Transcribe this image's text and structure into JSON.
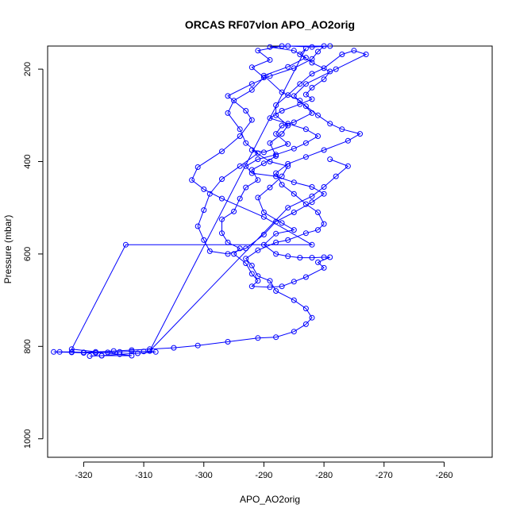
{
  "chart_data": {
    "type": "scatter",
    "title": "ORCAS RF07vlon APO_AO2orig",
    "xlabel": "APO_AO2orig",
    "ylabel": "Pressure (mbar)",
    "xlim": [
      -326,
      -252
    ],
    "ylim": [
      1040,
      150
    ],
    "y_reversed": true,
    "x_ticks": [
      -320,
      -310,
      -300,
      -290,
      -280,
      -270,
      -260
    ],
    "y_ticks": [
      200,
      400,
      600,
      800,
      1000
    ],
    "grid": false,
    "legend": "none",
    "colors": {
      "series": "#0000ff",
      "axes": "#000000",
      "background": "#ffffff"
    },
    "series": [
      {
        "marker": "open-circle",
        "line": true,
        "points": [
          [
            -279,
            150
          ],
          [
            -282,
            152
          ],
          [
            -286,
            150
          ],
          [
            -289,
            152
          ],
          [
            -285,
            160
          ],
          [
            -283,
            175
          ],
          [
            -286,
            195
          ],
          [
            -290,
            214
          ],
          [
            -287,
            250
          ],
          [
            -284,
            268
          ],
          [
            -282,
            295
          ],
          [
            -285,
            315
          ],
          [
            -287,
            322
          ],
          [
            -288,
            340
          ],
          [
            -286,
            362
          ],
          [
            -290,
            380
          ],
          [
            -292,
            375
          ],
          [
            -289,
            400
          ],
          [
            -286,
            410
          ],
          [
            -287,
            432
          ],
          [
            -289,
            456
          ],
          [
            -291,
            478
          ],
          [
            -290,
            510
          ],
          [
            -287,
            533
          ],
          [
            -285,
            548
          ],
          [
            -288,
            556
          ],
          [
            -290,
            580
          ],
          [
            -288,
            600
          ],
          [
            -286,
            605
          ],
          [
            -284,
            608
          ],
          [
            -282,
            608
          ],
          [
            -280,
            607
          ],
          [
            -279,
            607
          ],
          [
            -281,
            618
          ],
          [
            -280,
            630
          ],
          [
            -283,
            650
          ],
          [
            -285,
            660
          ],
          [
            -287,
            670
          ],
          [
            -289,
            672
          ],
          [
            -292,
            670
          ],
          [
            -291,
            658
          ],
          [
            -292,
            643
          ],
          [
            -293,
            620
          ],
          [
            -295,
            600
          ],
          [
            -294,
            588
          ],
          [
            -296,
            575
          ],
          [
            -297,
            555
          ],
          [
            -297,
            525
          ],
          [
            -295,
            508
          ],
          [
            -294,
            480
          ],
          [
            -293,
            456
          ],
          [
            -291,
            440
          ],
          [
            -292,
            418
          ],
          [
            -290,
            404
          ],
          [
            -288,
            388
          ],
          [
            -289,
            360
          ],
          [
            -287,
            340
          ],
          [
            -286,
            322
          ],
          [
            -288,
            300
          ],
          [
            -288,
            278
          ],
          [
            -286,
            256
          ],
          [
            -284,
            232
          ],
          [
            -282,
            210
          ],
          [
            -280,
            198
          ],
          [
            -277,
            168
          ],
          [
            -275,
            160
          ],
          [
            -273,
            168
          ],
          [
            -278,
            200
          ],
          [
            -283,
            232
          ],
          [
            -285,
            258
          ],
          [
            -283,
            280
          ],
          [
            -281,
            300
          ],
          [
            -279,
            318
          ],
          [
            -277,
            330
          ],
          [
            -274,
            340
          ],
          [
            -276,
            355
          ],
          [
            -280,
            375
          ],
          [
            -283,
            390
          ],
          [
            -286,
            405
          ],
          [
            -288,
            425
          ],
          [
            -287,
            450
          ],
          [
            -285,
            470
          ],
          [
            -283,
            492
          ],
          [
            -281,
            510
          ],
          [
            -280,
            535
          ],
          [
            -281,
            548
          ],
          [
            -283,
            555
          ],
          [
            -286,
            570
          ],
          [
            -288,
            575
          ],
          [
            -291,
            592
          ],
          [
            -293,
            610
          ],
          [
            -292,
            625
          ],
          [
            -291,
            648
          ],
          [
            -289,
            658
          ],
          [
            -288,
            680
          ],
          [
            -285,
            700
          ],
          [
            -283,
            718
          ],
          [
            -282,
            738
          ],
          [
            -283,
            752
          ],
          [
            -285,
            768
          ],
          [
            -288,
            780
          ],
          [
            -291,
            782
          ],
          [
            -296,
            790
          ],
          [
            -301,
            798
          ],
          [
            -305,
            803
          ],
          [
            -309,
            806
          ],
          [
            -312,
            808
          ],
          [
            -315,
            810
          ],
          [
            -318,
            812
          ],
          [
            -320,
            813
          ],
          [
            -322,
            812
          ],
          [
            -324,
            812
          ],
          [
            -325,
            812
          ],
          [
            -322,
            813
          ],
          [
            -320,
            814
          ],
          [
            -318,
            814
          ],
          [
            -316,
            813
          ],
          [
            -314,
            812
          ],
          [
            -312,
            811
          ],
          [
            -310,
            811
          ],
          [
            -308,
            812
          ],
          [
            -311,
            815
          ],
          [
            -314,
            817
          ],
          [
            -317,
            820
          ],
          [
            -319,
            821
          ],
          [
            -317,
            820
          ],
          [
            -312,
            820
          ],
          [
            -322,
            806
          ],
          [
            -313,
            580
          ],
          [
            -282,
            580
          ],
          [
            -290,
            520
          ],
          [
            -297,
            480
          ],
          [
            -300,
            460
          ],
          [
            -302,
            440
          ],
          [
            -301,
            412
          ],
          [
            -297,
            378
          ],
          [
            -294,
            345
          ],
          [
            -292,
            310
          ],
          [
            -293,
            290
          ],
          [
            -296,
            258
          ],
          [
            -292,
            232
          ],
          [
            -289,
            215
          ],
          [
            -285,
            198
          ],
          [
            -282,
            178
          ],
          [
            -281,
            162
          ],
          [
            -280,
            150
          ],
          [
            -287,
            150
          ],
          [
            -291,
            160
          ],
          [
            -289,
            180
          ],
          [
            -292,
            196
          ],
          [
            -290,
            218
          ],
          [
            -292,
            245
          ],
          [
            -295,
            268
          ],
          [
            -296,
            295
          ],
          [
            -294,
            330
          ],
          [
            -293,
            360
          ],
          [
            -291,
            382
          ],
          [
            -294,
            410
          ],
          [
            -297,
            438
          ],
          [
            -299,
            470
          ],
          [
            -300,
            505
          ],
          [
            -301,
            540
          ],
          [
            -300,
            570
          ],
          [
            -299,
            594
          ],
          [
            -296,
            600
          ],
          [
            -293,
            588
          ],
          [
            -290,
            558
          ],
          [
            -288,
            530
          ],
          [
            -285,
            510
          ],
          [
            -282,
            488
          ],
          [
            -280,
            470
          ],
          [
            -282,
            455
          ],
          [
            -285,
            445
          ],
          [
            -288,
            432
          ],
          [
            -292,
            425
          ],
          [
            -293,
            410
          ],
          [
            -291,
            395
          ],
          [
            -288,
            385
          ],
          [
            -285,
            372
          ],
          [
            -283,
            360
          ],
          [
            -281,
            345
          ],
          [
            -283,
            330
          ],
          [
            -286,
            318
          ],
          [
            -289,
            306
          ],
          [
            -287,
            290
          ],
          [
            -284,
            276
          ],
          [
            -282,
            265
          ],
          [
            -283,
            255
          ],
          [
            -282,
            240
          ],
          [
            -280,
            222
          ],
          [
            -279,
            205
          ],
          [
            -282,
            186
          ],
          [
            -284,
            168
          ],
          [
            -283,
            155
          ],
          [
            -309,
            810
          ],
          [
            -286,
            500
          ],
          [
            -282,
            475
          ],
          [
            -280,
            455
          ],
          [
            -278,
            432
          ],
          [
            -276,
            410
          ],
          [
            -279,
            395
          ]
        ]
      }
    ]
  }
}
